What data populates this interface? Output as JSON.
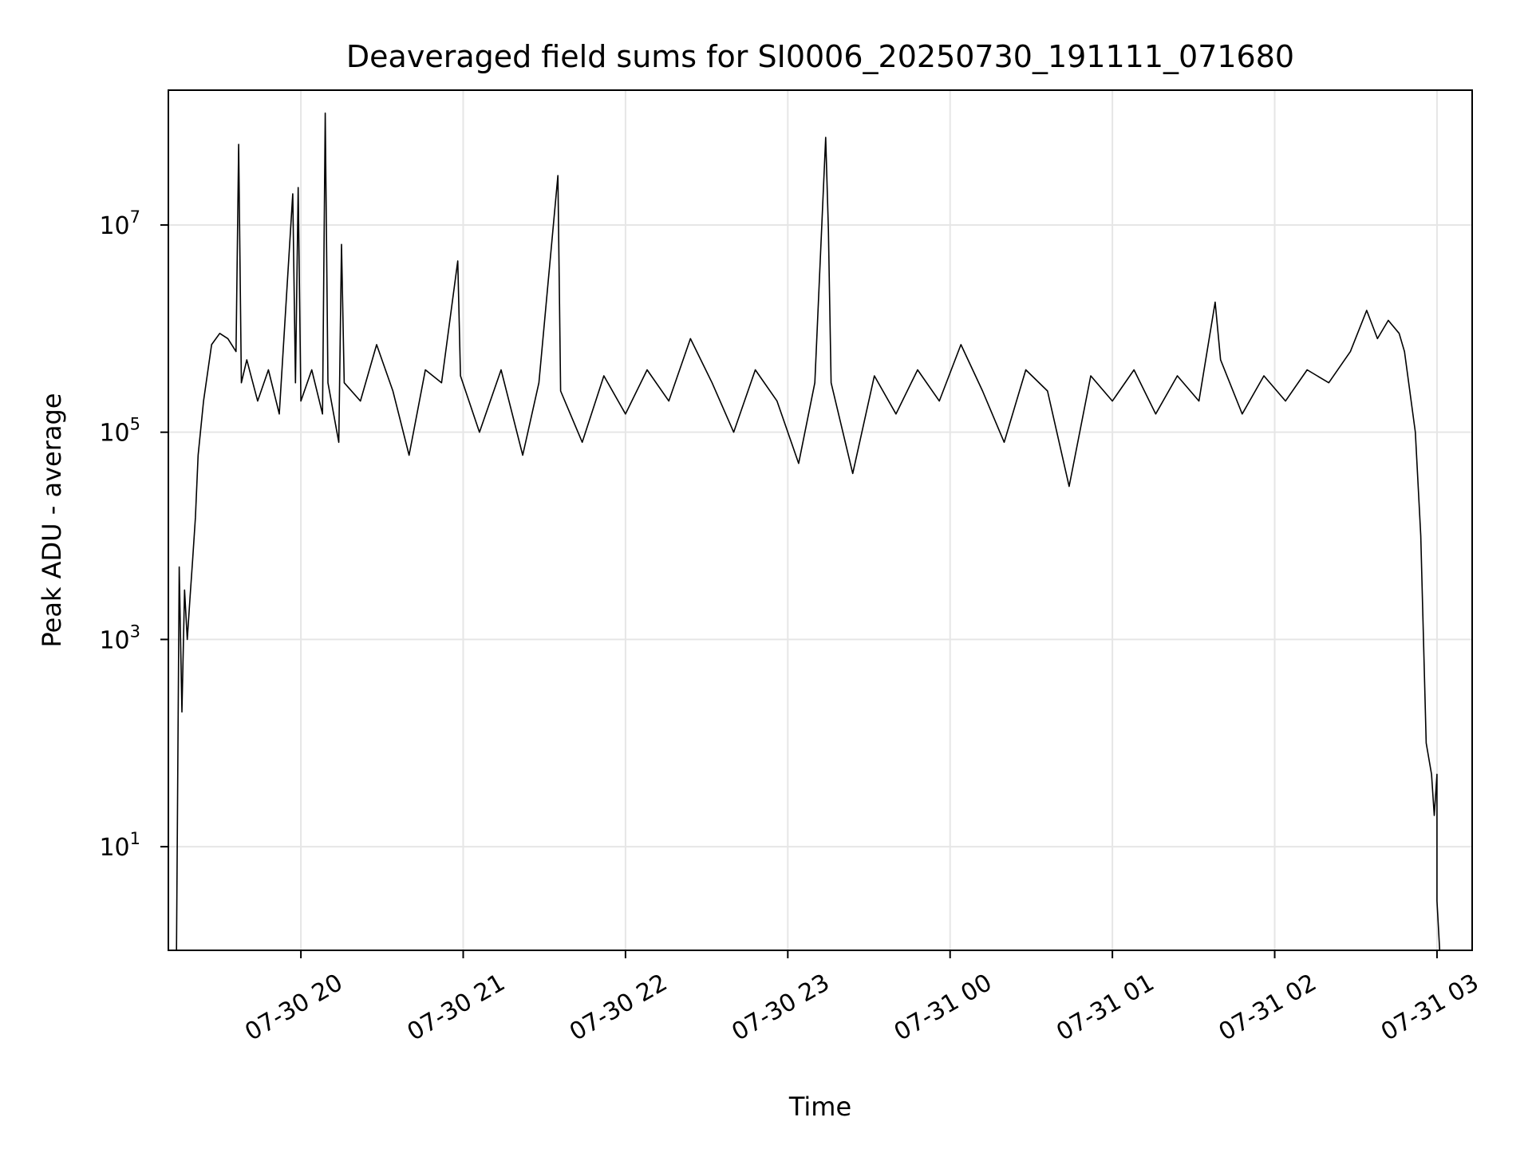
{
  "chart_data": {
    "type": "line",
    "title": "Deaveraged field sums for SI0006_20250730_191111_071680",
    "xlabel": "Time",
    "ylabel": "Peak ADU - average",
    "yscale": "log",
    "ylim": [
      1,
      200000000
    ],
    "xlim": [
      "2025-07-30 19:11",
      "2025-07-31 03:13"
    ],
    "grid": true,
    "line_color": "#000000",
    "x_ticks": [
      {
        "t": "2025-07-30 20:00",
        "label": "07-30 20"
      },
      {
        "t": "2025-07-30 21:00",
        "label": "07-30 21"
      },
      {
        "t": "2025-07-30 22:00",
        "label": "07-30 22"
      },
      {
        "t": "2025-07-30 23:00",
        "label": "07-30 23"
      },
      {
        "t": "2025-07-31 00:00",
        "label": "07-31 00"
      },
      {
        "t": "2025-07-31 01:00",
        "label": "07-31 01"
      },
      {
        "t": "2025-07-31 02:00",
        "label": "07-31 02"
      },
      {
        "t": "2025-07-31 03:00",
        "label": "07-31 03"
      }
    ],
    "y_ticks": [
      {
        "value": 10,
        "base": "10",
        "exp": "1"
      },
      {
        "value": 1000,
        "base": "10",
        "exp": "3"
      },
      {
        "value": 100000,
        "base": "10",
        "exp": "5"
      },
      {
        "value": 10000000,
        "base": "10",
        "exp": "7"
      }
    ],
    "series": [
      {
        "points": [
          [
            "2025-07-30 19:14",
            1
          ],
          [
            "2025-07-30 19:15",
            5000
          ],
          [
            "2025-07-30 19:16",
            200
          ],
          [
            "2025-07-30 19:17",
            3000
          ],
          [
            "2025-07-30 19:18",
            1000
          ],
          [
            "2025-07-30 19:19",
            2500
          ],
          [
            "2025-07-30 19:20",
            6000
          ],
          [
            "2025-07-30 19:21",
            15000
          ],
          [
            "2025-07-30 19:22",
            60000
          ],
          [
            "2025-07-30 19:24",
            200000
          ],
          [
            "2025-07-30 19:27",
            700000
          ],
          [
            "2025-07-30 19:30",
            900000
          ],
          [
            "2025-07-30 19:33",
            800000
          ],
          [
            "2025-07-30 19:36",
            600000
          ],
          [
            "2025-07-30 19:37",
            60000000
          ],
          [
            "2025-07-30 19:38",
            300000
          ],
          [
            "2025-07-30 19:40",
            500000
          ],
          [
            "2025-07-30 19:44",
            200000
          ],
          [
            "2025-07-30 19:48",
            400000
          ],
          [
            "2025-07-30 19:52",
            150000
          ],
          [
            "2025-07-30 19:57",
            20000000
          ],
          [
            "2025-07-30 19:58",
            300000
          ],
          [
            "2025-07-30 19:59",
            23000000
          ],
          [
            "2025-07-30 20:00",
            200000
          ],
          [
            "2025-07-30 20:04",
            400000
          ],
          [
            "2025-07-30 20:08",
            150000
          ],
          [
            "2025-07-30 20:09",
            120000000
          ],
          [
            "2025-07-30 20:10",
            300000
          ],
          [
            "2025-07-30 20:14",
            80000
          ],
          [
            "2025-07-30 20:15",
            6500000
          ],
          [
            "2025-07-30 20:16",
            300000
          ],
          [
            "2025-07-30 20:22",
            200000
          ],
          [
            "2025-07-30 20:28",
            700000
          ],
          [
            "2025-07-30 20:34",
            250000
          ],
          [
            "2025-07-30 20:40",
            60000
          ],
          [
            "2025-07-30 20:46",
            400000
          ],
          [
            "2025-07-30 20:52",
            300000
          ],
          [
            "2025-07-30 20:58",
            4500000
          ],
          [
            "2025-07-30 20:59",
            350000
          ],
          [
            "2025-07-30 21:06",
            100000
          ],
          [
            "2025-07-30 21:14",
            400000
          ],
          [
            "2025-07-30 21:22",
            60000
          ],
          [
            "2025-07-30 21:28",
            300000
          ],
          [
            "2025-07-30 21:35",
            30000000
          ],
          [
            "2025-07-30 21:36",
            250000
          ],
          [
            "2025-07-30 21:44",
            80000
          ],
          [
            "2025-07-30 21:52",
            350000
          ],
          [
            "2025-07-30 22:00",
            150000
          ],
          [
            "2025-07-30 22:08",
            400000
          ],
          [
            "2025-07-30 22:16",
            200000
          ],
          [
            "2025-07-30 22:24",
            800000
          ],
          [
            "2025-07-30 22:32",
            300000
          ],
          [
            "2025-07-30 22:40",
            100000
          ],
          [
            "2025-07-30 22:48",
            400000
          ],
          [
            "2025-07-30 22:56",
            200000
          ],
          [
            "2025-07-30 23:04",
            50000
          ],
          [
            "2025-07-30 23:10",
            300000
          ],
          [
            "2025-07-30 23:14",
            70000000
          ],
          [
            "2025-07-30 23:15",
            9000000
          ],
          [
            "2025-07-30 23:16",
            300000
          ],
          [
            "2025-07-30 23:24",
            40000
          ],
          [
            "2025-07-30 23:32",
            350000
          ],
          [
            "2025-07-30 23:40",
            150000
          ],
          [
            "2025-07-30 23:48",
            400000
          ],
          [
            "2025-07-30 23:56",
            200000
          ],
          [
            "2025-07-31 00:04",
            700000
          ],
          [
            "2025-07-31 00:12",
            250000
          ],
          [
            "2025-07-31 00:20",
            80000
          ],
          [
            "2025-07-31 00:28",
            400000
          ],
          [
            "2025-07-31 00:36",
            250000
          ],
          [
            "2025-07-31 00:44",
            30000
          ],
          [
            "2025-07-31 00:52",
            350000
          ],
          [
            "2025-07-31 01:00",
            200000
          ],
          [
            "2025-07-31 01:08",
            400000
          ],
          [
            "2025-07-31 01:16",
            150000
          ],
          [
            "2025-07-31 01:24",
            350000
          ],
          [
            "2025-07-31 01:32",
            200000
          ],
          [
            "2025-07-31 01:38",
            1800000
          ],
          [
            "2025-07-31 01:40",
            500000
          ],
          [
            "2025-07-31 01:48",
            150000
          ],
          [
            "2025-07-31 01:56",
            350000
          ],
          [
            "2025-07-31 02:04",
            200000
          ],
          [
            "2025-07-31 02:12",
            400000
          ],
          [
            "2025-07-31 02:20",
            300000
          ],
          [
            "2025-07-31 02:28",
            600000
          ],
          [
            "2025-07-31 02:34",
            1500000
          ],
          [
            "2025-07-31 02:38",
            800000
          ],
          [
            "2025-07-31 02:42",
            1200000
          ],
          [
            "2025-07-31 02:46",
            900000
          ],
          [
            "2025-07-31 02:48",
            600000
          ],
          [
            "2025-07-31 02:52",
            100000
          ],
          [
            "2025-07-31 02:54",
            10000
          ],
          [
            "2025-07-31 02:55",
            1000
          ],
          [
            "2025-07-31 02:56",
            100
          ],
          [
            "2025-07-31 02:58",
            50
          ],
          [
            "2025-07-31 02:59",
            20
          ],
          [
            "2025-07-31 03:00",
            50
          ],
          [
            "2025-07-31 03:00",
            3
          ],
          [
            "2025-07-31 03:01",
            1
          ]
        ]
      }
    ]
  }
}
